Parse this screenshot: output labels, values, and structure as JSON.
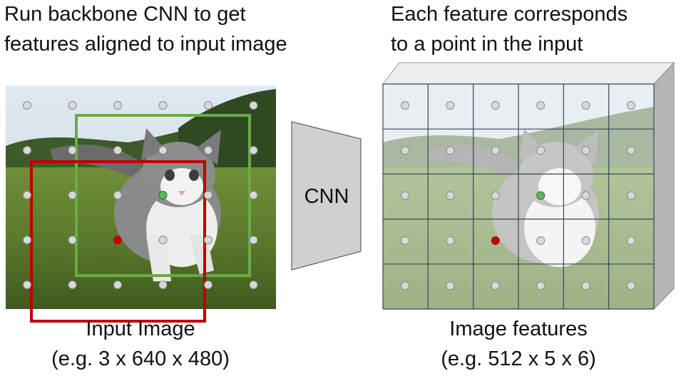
{
  "left_heading": {
    "line1": "Run backbone CNN to get",
    "line2": "features aligned to input image"
  },
  "right_heading": {
    "line1": "Each feature corresponds",
    "line2": "to a point in the input"
  },
  "cnn_label": "CNN",
  "input_caption": {
    "line1": "Input Image",
    "line2": "(e.g. 3 x 640 x 480)"
  },
  "features_caption": {
    "line1": "Image features",
    "line2": "(e.g. 512 x 5 x 6)"
  },
  "feature_grid": {
    "rows": 5,
    "cols": 6
  },
  "colors": {
    "green_box": "#6aab47",
    "red_box": "#c00000",
    "green_dot": "#5cb85c",
    "red_dot": "#c00000",
    "grid_line": "#34495e",
    "cnn_fill": "#d0d0d0"
  }
}
